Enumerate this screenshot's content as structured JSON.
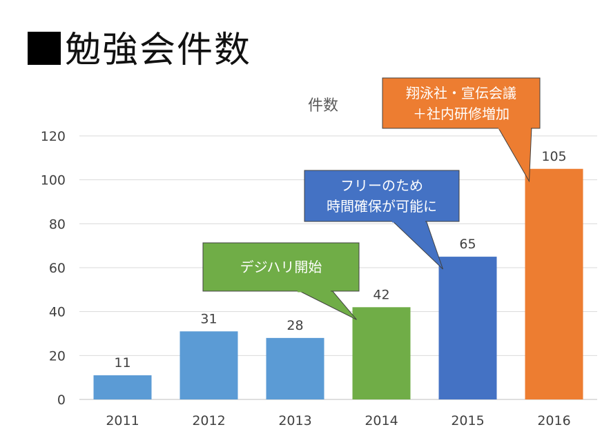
{
  "slide": {
    "title": "勉強会件数"
  },
  "chart_data": {
    "type": "bar",
    "title": "件数",
    "categories": [
      "2011",
      "2012",
      "2013",
      "2014",
      "2015",
      "2016"
    ],
    "values": [
      11,
      31,
      28,
      42,
      65,
      105
    ],
    "bar_colors": [
      "#5B9BD5",
      "#5B9BD5",
      "#5B9BD5",
      "#70AD47",
      "#4472C4",
      "#ED7D31"
    ],
    "ylim": [
      0,
      120
    ],
    "yticks": [
      "0",
      "20",
      "40",
      "60",
      "80",
      "100",
      "120"
    ],
    "grid": true,
    "legend": "none",
    "annotations": [
      {
        "text": [
          "デジハリ開始"
        ],
        "category": "2014",
        "color": "#70AD47"
      },
      {
        "text": [
          "フリーのため",
          "時間確保が可能に"
        ],
        "category": "2015",
        "color": "#4472C4"
      },
      {
        "text": [
          "翔泳社・宣伝会議",
          "＋社内研修増加"
        ],
        "category": "2016",
        "color": "#ED7D31"
      }
    ]
  }
}
